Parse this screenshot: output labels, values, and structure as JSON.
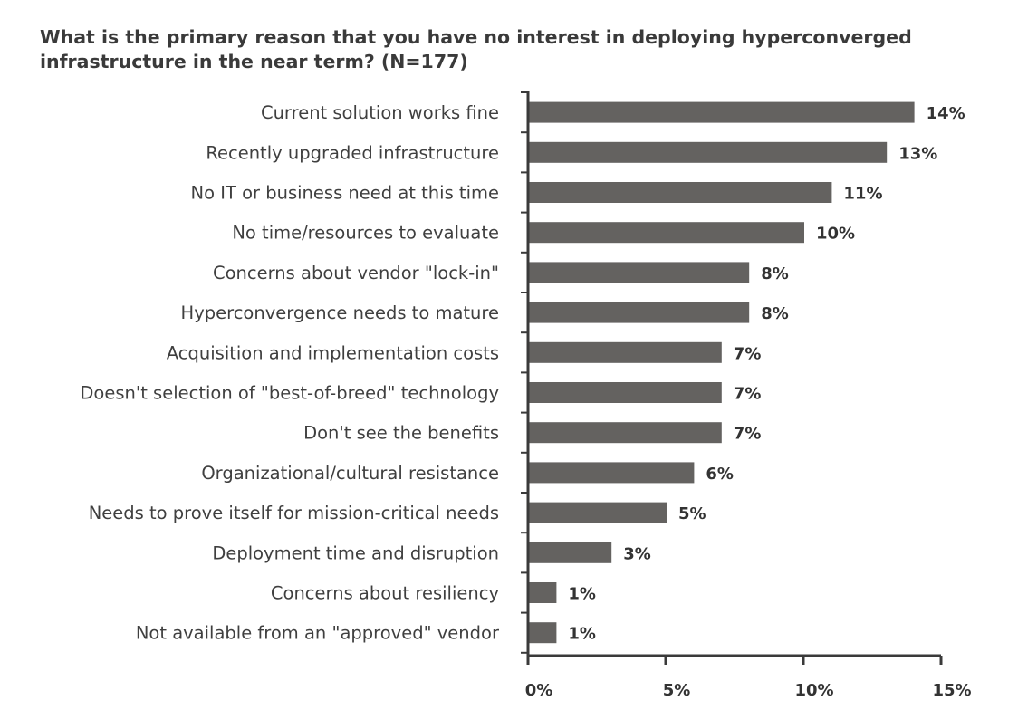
{
  "chart_data": {
    "type": "bar",
    "orientation": "horizontal",
    "title": "What is the primary reason that you have no interest in deploying hyperconverged infrastructure in the near term? (N=177)",
    "categories": [
      "Current solution works fine",
      "Recently upgraded infrastructure",
      "No IT or business need at this time",
      "No time/resources to evaluate",
      "Concerns about vendor \"lock-in\"",
      "Hyperconvergence needs to mature",
      "Acquisition and implementation costs",
      "Doesn't selection of \"best-of-breed\" technology",
      "Don't see the benefits",
      "Organizational/cultural resistance",
      "Needs to prove itself for mission-critical needs",
      "Deployment time and disruption",
      "Concerns about resiliency",
      "Not available from an \"approved\" vendor"
    ],
    "values": [
      14,
      13,
      11,
      10,
      8,
      8,
      7,
      7,
      7,
      6,
      5,
      3,
      1,
      1
    ],
    "value_labels": [
      "14%",
      "13%",
      "11%",
      "10%",
      "8%",
      "8%",
      "7%",
      "7%",
      "7%",
      "6%",
      "5%",
      "3%",
      "1%",
      "1%"
    ],
    "xlim": [
      0,
      15
    ],
    "xticks": [
      0,
      5,
      10,
      15
    ],
    "xtick_labels": [
      "0%",
      "5%",
      "10%",
      "15%"
    ],
    "grid": false,
    "legend": "none",
    "bar_color": "#646260",
    "axis_color": "#3a3a3a"
  }
}
